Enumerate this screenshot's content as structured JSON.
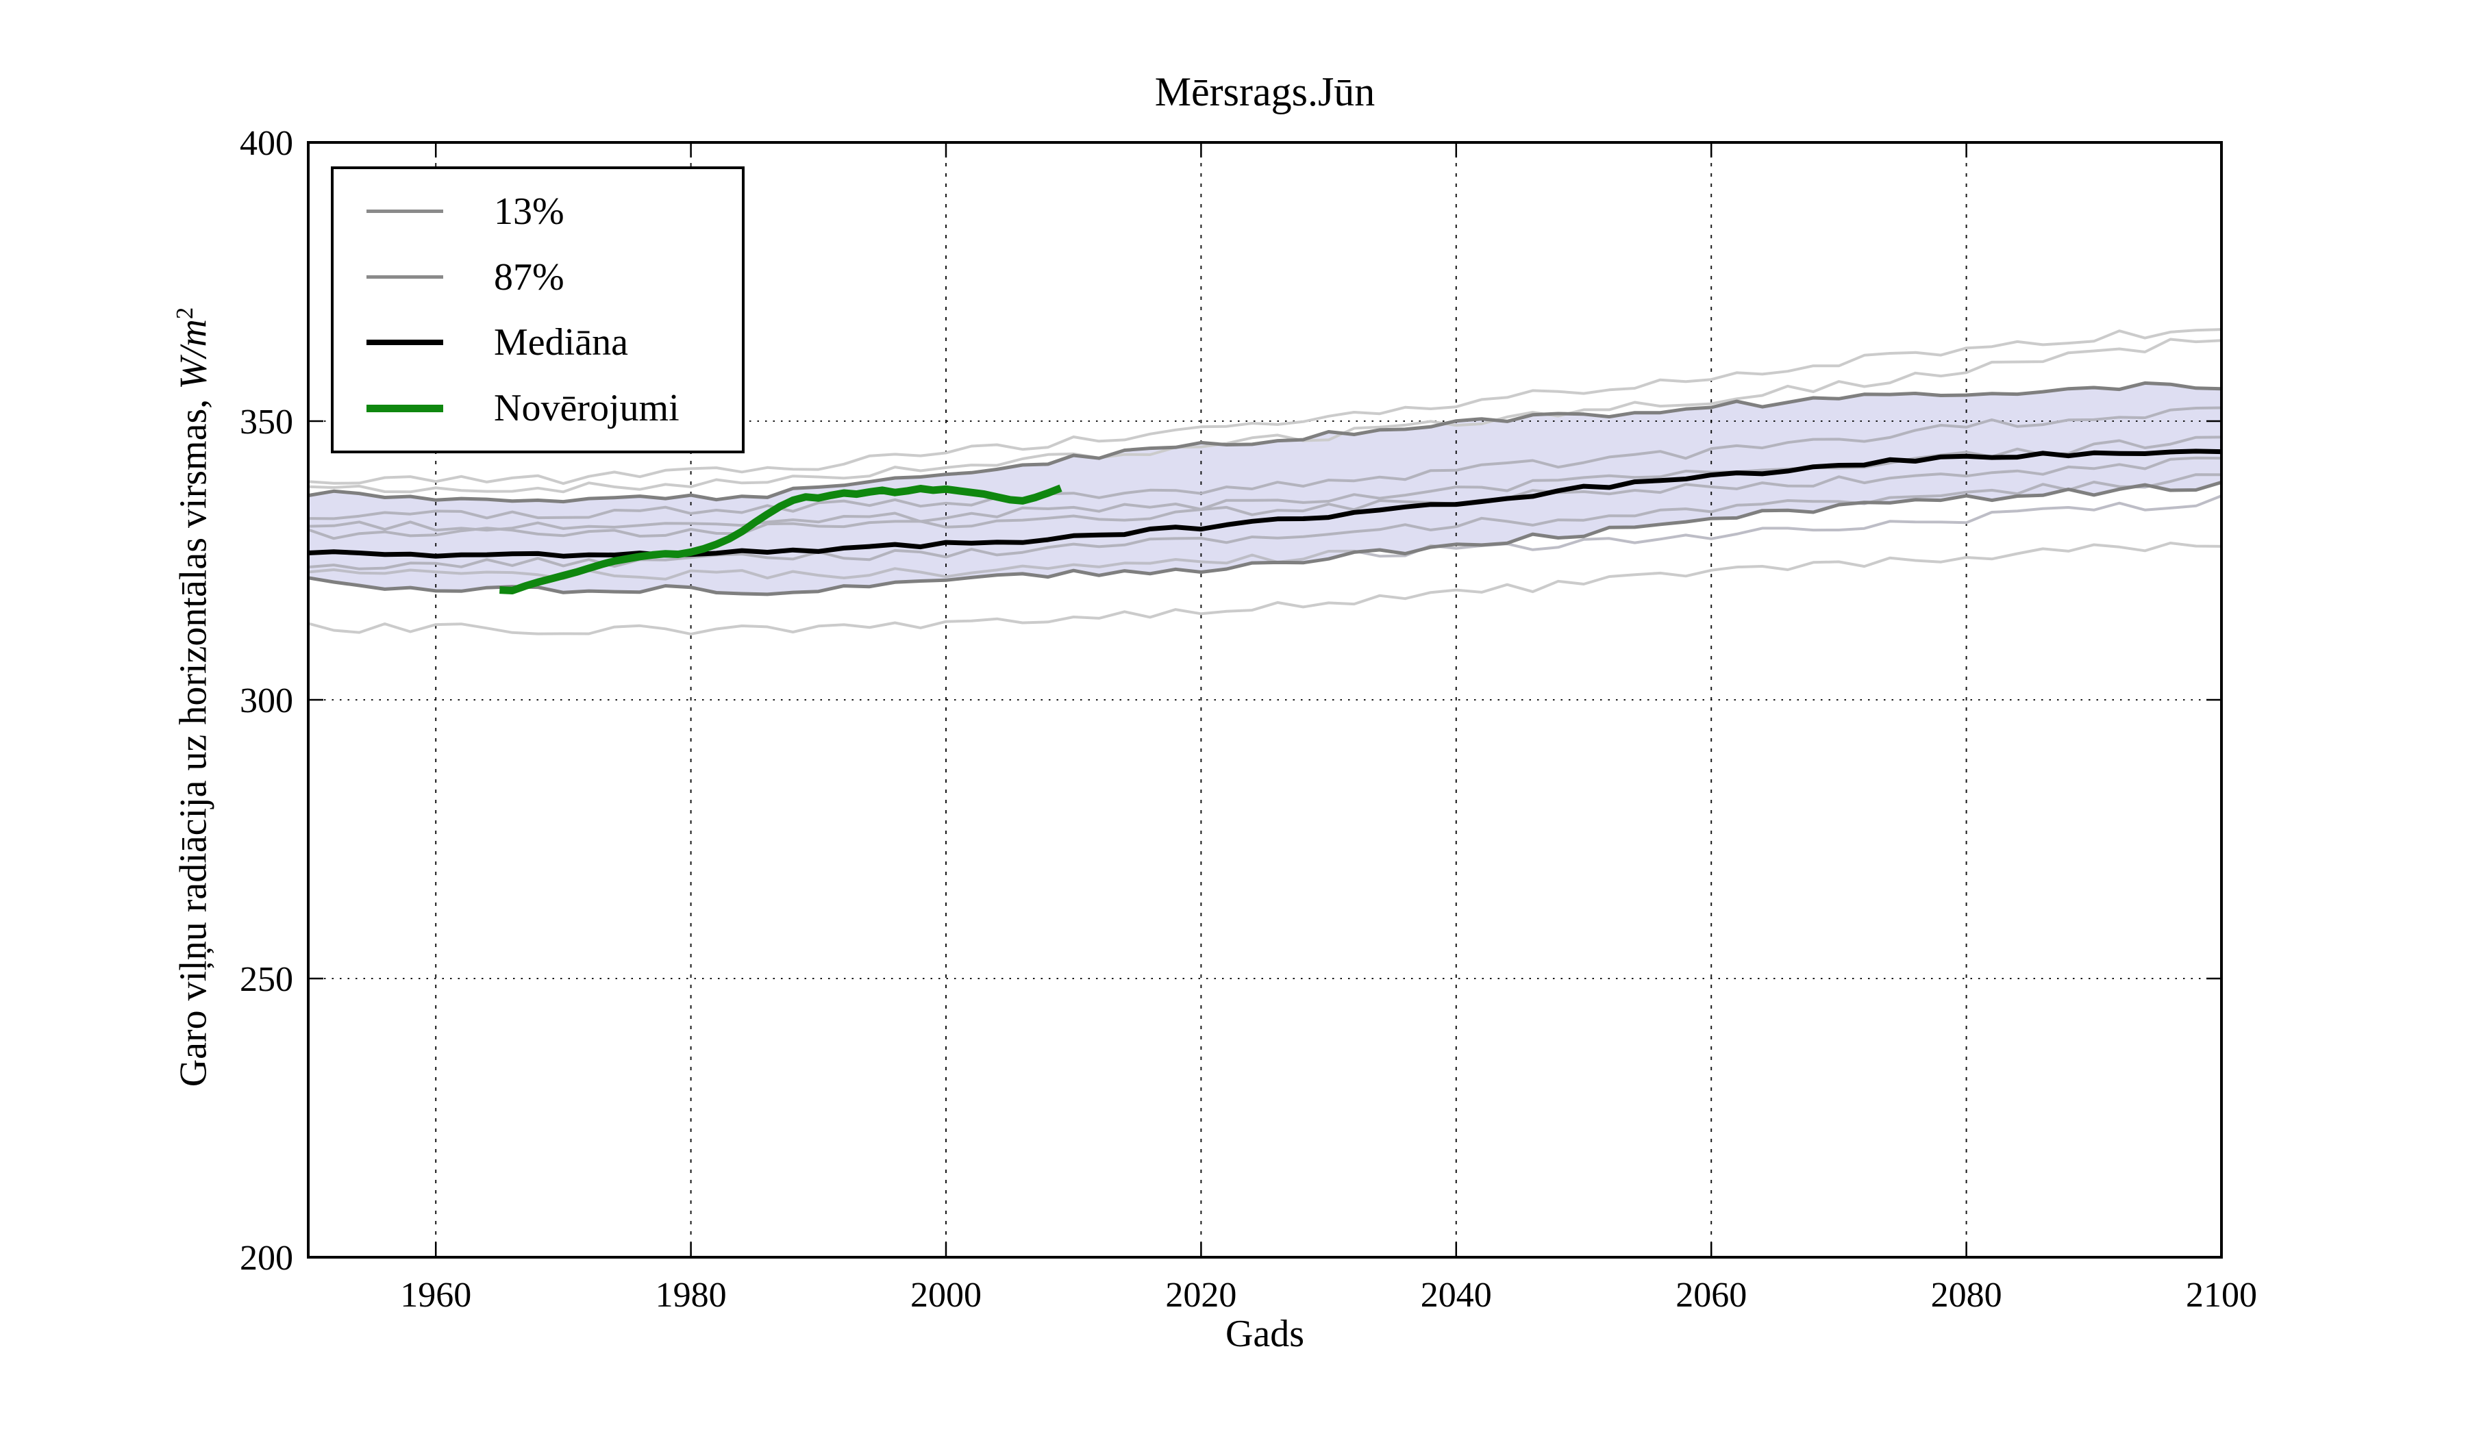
{
  "title": "Mērsrags.Jūn",
  "legend": {
    "position": "upper-left",
    "items": [
      {
        "label": "13%",
        "color": "#8a8a8a",
        "thickness": 5
      },
      {
        "label": "87%",
        "color": "#8a8a8a",
        "thickness": 5
      },
      {
        "label": "Mediāna",
        "color": "#000000",
        "thickness": 8
      },
      {
        "label": "Novērojumi",
        "color": "#0f870f",
        "thickness": 11
      }
    ]
  },
  "chart_data": {
    "type": "line",
    "title": "Mērsrags.Jūn",
    "xlabel": "Gads",
    "ylabel": "Garo viļņu radiācija uz horizontālas virsmas, W/m²",
    "ylabel_parts": {
      "text": "Garo viļņu radiācija uz horizontālas virsmas, ",
      "unit": "W/m",
      "exponent": "2"
    },
    "xlim": [
      1950,
      2100
    ],
    "ylim": [
      200,
      400
    ],
    "x_ticks": [
      1960,
      1980,
      2000,
      2020,
      2040,
      2060,
      2080,
      2100
    ],
    "y_ticks": [
      200,
      250,
      300,
      350,
      400
    ],
    "grid": true,
    "band": {
      "upper": "87%",
      "lower": "13%",
      "fill": "#dedef2"
    },
    "series": [
      {
        "name": "13%",
        "role": "percentile_lower",
        "color": "#7f7f7f",
        "width": 5,
        "wiggle": 0.7,
        "points": [
          [
            1950,
            321.3
          ],
          [
            1955,
            320.6
          ],
          [
            1960,
            320.2
          ],
          [
            1965,
            320.0
          ],
          [
            1970,
            319.8
          ],
          [
            1975,
            319.9
          ],
          [
            1980,
            320.1
          ],
          [
            1985,
            318.9
          ],
          [
            1990,
            319.6
          ],
          [
            1995,
            320.4
          ],
          [
            2000,
            321.2
          ],
          [
            2005,
            321.9
          ],
          [
            2010,
            322.6
          ],
          [
            2015,
            323.2
          ],
          [
            2020,
            323.6
          ],
          [
            2025,
            324.5
          ],
          [
            2030,
            325.6
          ],
          [
            2035,
            326.6
          ],
          [
            2040,
            327.7
          ],
          [
            2045,
            328.8
          ],
          [
            2050,
            330.0
          ],
          [
            2055,
            331.2
          ],
          [
            2060,
            332.4
          ],
          [
            2065,
            333.5
          ],
          [
            2070,
            334.5
          ],
          [
            2075,
            335.3
          ],
          [
            2080,
            336.1
          ],
          [
            2085,
            336.8
          ],
          [
            2090,
            337.4
          ],
          [
            2095,
            338.0
          ],
          [
            2100,
            338.4
          ]
        ]
      },
      {
        "name": "87%",
        "role": "percentile_upper",
        "color": "#7f7f7f",
        "width": 5,
        "wiggle": 0.7,
        "points": [
          [
            1950,
            337.0
          ],
          [
            1955,
            336.4
          ],
          [
            1960,
            336.2
          ],
          [
            1965,
            336.0
          ],
          [
            1970,
            336.1
          ],
          [
            1975,
            336.2
          ],
          [
            1980,
            336.4
          ],
          [
            1985,
            336.8
          ],
          [
            1990,
            337.8
          ],
          [
            1995,
            339.0
          ],
          [
            2000,
            340.3
          ],
          [
            2005,
            341.8
          ],
          [
            2010,
            343.3
          ],
          [
            2015,
            344.6
          ],
          [
            2020,
            345.7
          ],
          [
            2025,
            346.6
          ],
          [
            2030,
            347.6
          ],
          [
            2035,
            348.6
          ],
          [
            2040,
            349.5
          ],
          [
            2045,
            350.3
          ],
          [
            2050,
            351.1
          ],
          [
            2055,
            351.9
          ],
          [
            2060,
            352.6
          ],
          [
            2065,
            353.3
          ],
          [
            2070,
            354.0
          ],
          [
            2075,
            354.5
          ],
          [
            2080,
            355.0
          ],
          [
            2085,
            355.5
          ],
          [
            2090,
            355.9
          ],
          [
            2095,
            356.2
          ],
          [
            2100,
            356.4
          ]
        ]
      },
      {
        "name": "ensemble-1",
        "role": "ensemble",
        "color": "#cbcbcb",
        "width": 4,
        "wiggle": 0.9,
        "points": [
          [
            1950,
            339.0
          ],
          [
            1970,
            339.5
          ],
          [
            1990,
            342.0
          ],
          [
            2010,
            346.5
          ],
          [
            2030,
            351.0
          ],
          [
            2050,
            355.5
          ],
          [
            2070,
            360.5
          ],
          [
            2085,
            364.0
          ],
          [
            2100,
            367.0
          ]
        ]
      },
      {
        "name": "ensemble-2",
        "role": "ensemble",
        "color": "#cbcbcb",
        "width": 4,
        "wiggle": 0.9,
        "points": [
          [
            1950,
            337.5
          ],
          [
            1970,
            338.0
          ],
          [
            1990,
            340.0
          ],
          [
            2010,
            343.5
          ],
          [
            2030,
            347.5
          ],
          [
            2050,
            351.5
          ],
          [
            2070,
            356.5
          ],
          [
            2085,
            361.0
          ],
          [
            2100,
            364.8
          ]
        ]
      },
      {
        "name": "ensemble-3",
        "role": "ensemble",
        "color": "#b3b3bd",
        "width": 4,
        "wiggle": 0.9,
        "points": [
          [
            1950,
            333.0
          ],
          [
            1975,
            333.5
          ],
          [
            2000,
            335.5
          ],
          [
            2020,
            337.5
          ],
          [
            2040,
            341.0
          ],
          [
            2060,
            344.5
          ],
          [
            2080,
            349.0
          ],
          [
            2100,
            352.5
          ]
        ]
      },
      {
        "name": "ensemble-4",
        "role": "ensemble",
        "color": "#b3b3bd",
        "width": 4,
        "wiggle": 0.9,
        "points": [
          [
            1950,
            331.0
          ],
          [
            1975,
            331.5
          ],
          [
            2000,
            333.0
          ],
          [
            2025,
            335.5
          ],
          [
            2050,
            339.0
          ],
          [
            2075,
            343.0
          ],
          [
            2100,
            347.0
          ]
        ]
      },
      {
        "name": "ensemble-5",
        "role": "ensemble",
        "color": "#b3b3bd",
        "width": 4,
        "wiggle": 0.9,
        "points": [
          [
            1950,
            329.8
          ],
          [
            1975,
            330.2
          ],
          [
            2000,
            331.5
          ],
          [
            2025,
            334.0
          ],
          [
            2050,
            337.2
          ],
          [
            2075,
            340.0
          ],
          [
            2100,
            343.0
          ]
        ]
      },
      {
        "name": "ensemble-6",
        "role": "ensemble",
        "color": "#b3b3bd",
        "width": 4,
        "wiggle": 0.9,
        "points": [
          [
            1950,
            324.3
          ],
          [
            1975,
            324.8
          ],
          [
            2000,
            326.3
          ],
          [
            2025,
            329.3
          ],
          [
            2050,
            332.8
          ],
          [
            2075,
            336.3
          ],
          [
            2100,
            339.8
          ]
        ]
      },
      {
        "name": "ensemble-7",
        "role": "ensemble",
        "color": "#bdbdc6",
        "width": 4,
        "wiggle": 0.9,
        "points": [
          [
            1950,
            322.8
          ],
          [
            1975,
            322.3
          ],
          [
            2000,
            322.9
          ],
          [
            2025,
            325.3
          ],
          [
            2050,
            328.3
          ],
          [
            2075,
            331.8
          ],
          [
            2100,
            335.8
          ]
        ]
      },
      {
        "name": "ensemble-8",
        "role": "ensemble",
        "color": "#cbcbcb",
        "width": 4,
        "wiggle": 0.9,
        "points": [
          [
            1950,
            313.0
          ],
          [
            1975,
            312.4
          ],
          [
            2000,
            313.2
          ],
          [
            2025,
            316.5
          ],
          [
            2050,
            321.0
          ],
          [
            2075,
            325.0
          ],
          [
            2100,
            328.3
          ]
        ]
      },
      {
        "name": "Mediāna",
        "role": "median",
        "color": "#000000",
        "width": 7,
        "wiggle": 0.45,
        "points": [
          [
            1950,
            326.6
          ],
          [
            1955,
            326.2
          ],
          [
            1960,
            326.1
          ],
          [
            1965,
            326.0
          ],
          [
            1970,
            326.1
          ],
          [
            1975,
            326.2
          ],
          [
            1980,
            326.3
          ],
          [
            1985,
            326.6
          ],
          [
            1990,
            327.0
          ],
          [
            1995,
            327.4
          ],
          [
            2000,
            327.9
          ],
          [
            2005,
            328.5
          ],
          [
            2010,
            329.3
          ],
          [
            2015,
            330.1
          ],
          [
            2020,
            331.0
          ],
          [
            2025,
            332.0
          ],
          [
            2030,
            333.1
          ],
          [
            2035,
            334.3
          ],
          [
            2040,
            335.5
          ],
          [
            2045,
            336.7
          ],
          [
            2050,
            337.9
          ],
          [
            2055,
            339.1
          ],
          [
            2060,
            340.2
          ],
          [
            2065,
            341.2
          ],
          [
            2070,
            342.1
          ],
          [
            2075,
            342.8
          ],
          [
            2080,
            343.4
          ],
          [
            2085,
            343.9
          ],
          [
            2090,
            344.3
          ],
          [
            2095,
            344.6
          ],
          [
            2100,
            344.8
          ]
        ]
      },
      {
        "name": "Novērojumi",
        "role": "observations",
        "color": "#0f870f",
        "width": 11,
        "wiggle": 0,
        "points": [
          [
            1965,
            319.7
          ],
          [
            1966,
            319.6
          ],
          [
            1967,
            320.4
          ],
          [
            1968,
            321.1
          ],
          [
            1969,
            321.7
          ],
          [
            1970,
            322.3
          ],
          [
            1971,
            322.9
          ],
          [
            1972,
            323.6
          ],
          [
            1973,
            324.3
          ],
          [
            1974,
            324.9
          ],
          [
            1975,
            325.3
          ],
          [
            1976,
            325.7
          ],
          [
            1977,
            326.0
          ],
          [
            1978,
            326.2
          ],
          [
            1979,
            326.1
          ],
          [
            1980,
            326.5
          ],
          [
            1981,
            327.1
          ],
          [
            1982,
            327.9
          ],
          [
            1983,
            328.9
          ],
          [
            1984,
            330.2
          ],
          [
            1985,
            331.8
          ],
          [
            1986,
            333.3
          ],
          [
            1987,
            334.7
          ],
          [
            1988,
            335.8
          ],
          [
            1989,
            336.4
          ],
          [
            1990,
            336.2
          ],
          [
            1991,
            336.7
          ],
          [
            1992,
            337.1
          ],
          [
            1993,
            336.9
          ],
          [
            1994,
            337.3
          ],
          [
            1995,
            337.6
          ],
          [
            1996,
            337.2
          ],
          [
            1997,
            337.5
          ],
          [
            1998,
            337.9
          ],
          [
            1999,
            337.6
          ],
          [
            2000,
            337.8
          ],
          [
            2001,
            337.5
          ],
          [
            2002,
            337.2
          ],
          [
            2003,
            336.9
          ],
          [
            2004,
            336.4
          ],
          [
            2005,
            335.9
          ],
          [
            2006,
            335.7
          ],
          [
            2007,
            336.3
          ],
          [
            2008,
            337.1
          ],
          [
            2009,
            338.0
          ]
        ]
      }
    ],
    "legend_entries": [
      "13%",
      "87%",
      "Mediāna",
      "Novērojumi"
    ],
    "axis_color": "#000000",
    "grid_color": "#000000"
  }
}
